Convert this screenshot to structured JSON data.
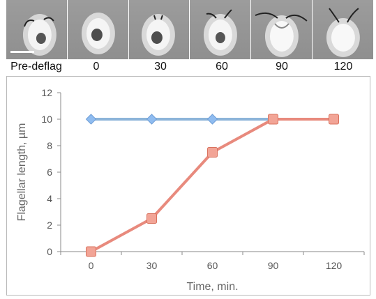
{
  "strip": {
    "labels": [
      "Pre-deflag",
      "0",
      "30",
      "60",
      "90",
      "120"
    ]
  },
  "chart_data": {
    "type": "line",
    "title": "",
    "xlabel": "Time, min.",
    "ylabel": "Flagellar length, µm",
    "categories": [
      "0",
      "30",
      "60",
      "90",
      "120"
    ],
    "ylim": [
      0,
      12
    ],
    "yticks": [
      0,
      2,
      4,
      6,
      8,
      10,
      12
    ],
    "grid": false,
    "legend": "none",
    "series": [
      {
        "values": [
          10,
          10,
          10,
          10,
          null
        ],
        "color": "#8cb4d9",
        "marker": "diamond",
        "marker_color": "#8fbcf0"
      },
      {
        "values": [
          0,
          2.5,
          7.5,
          10,
          10
        ],
        "color": "#e88a7d",
        "marker": "square",
        "marker_color": "#f2a496"
      }
    ]
  }
}
